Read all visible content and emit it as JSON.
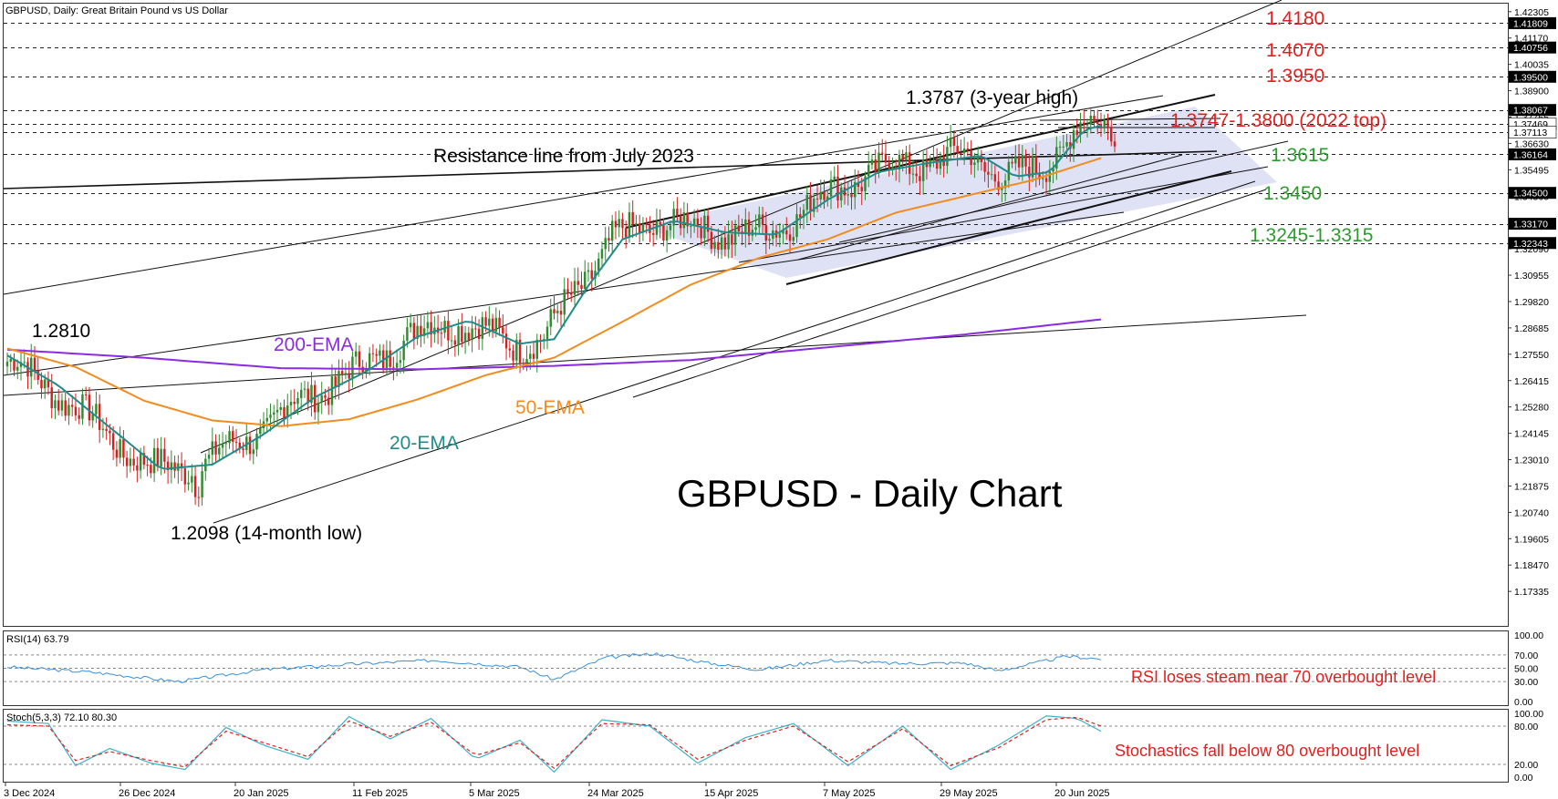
{
  "header": {
    "title": "GBPUSD, Daily:  Great Britain Pound vs US Dollar"
  },
  "colors": {
    "bull": "#2e8b2e",
    "bear": "#d42020",
    "ema20": "#238a8a",
    "ema50": "#f28c1e",
    "ema200": "#8a2be2",
    "channel_fill": "#d9dcf2",
    "red_label": "#e0201e",
    "green_label": "#2e9a2e",
    "rsi_line": "#3b8fd6",
    "stoch_k": "#3bb0c8",
    "stoch_d": "#e0201e"
  },
  "chart_data": [
    {
      "type": "candlestick",
      "title": "GBPUSD - Daily Chart",
      "ylim": [
        1.1585,
        1.4265
      ],
      "price_ticks": [
        "1.42305",
        "1.41170",
        "1.40035",
        "1.38900",
        "1.37765",
        "1.36630",
        "1.35495",
        "1.34360",
        "1.33225",
        "1.32090",
        "1.30955",
        "1.29820",
        "1.28685",
        "1.27550",
        "1.26415",
        "1.25280",
        "1.24145",
        "1.23010",
        "1.21875",
        "1.20740",
        "1.19605",
        "1.18470",
        "1.17335"
      ],
      "price_tags": [
        {
          "label": "1.41809",
          "value": 1.4181,
          "dark": true
        },
        {
          "label": "1.40756",
          "value": 1.4076,
          "dark": true
        },
        {
          "label": "1.39500",
          "value": 1.395,
          "dark": true
        },
        {
          "label": "1.38067",
          "value": 1.3807,
          "dark": true
        },
        {
          "label": "1.37469",
          "value": 1.3747,
          "dark": false
        },
        {
          "label": "1.37113",
          "value": 1.3711,
          "dark": false
        },
        {
          "label": "1.36164",
          "value": 1.3616,
          "dark": true
        },
        {
          "label": "1.34500",
          "value": 1.345,
          "dark": true
        },
        {
          "label": "1.33170",
          "value": 1.3317,
          "dark": true
        },
        {
          "label": "1.32343",
          "value": 1.3234,
          "dark": true
        }
      ],
      "dates": [
        "3 Dec 2024",
        "26 Dec 2024",
        "20 Jan 2025",
        "11 Feb 2025",
        "5 Mar 2025",
        "24 Mar 2025",
        "15 Apr 2025",
        "7 May 2025",
        "29 May 2025",
        "20 Jun 2025"
      ],
      "series": [
        {
          "name": "200-EMA",
          "values": [
            [
              0,
              1.2775
            ],
            [
              40,
              1.274
            ],
            [
              80,
              1.2695
            ],
            [
              120,
              1.269
            ],
            [
              160,
              1.2705
            ],
            [
              200,
              1.273
            ],
            [
              240,
              1.2785
            ],
            [
              280,
              1.284
            ],
            [
              320,
              1.2905
            ]
          ]
        },
        {
          "name": "50-EMA",
          "values": [
            [
              0,
              1.278
            ],
            [
              20,
              1.27
            ],
            [
              40,
              1.2555
            ],
            [
              60,
              1.247
            ],
            [
              80,
              1.2445
            ],
            [
              100,
              1.2475
            ],
            [
              120,
              1.256
            ],
            [
              140,
              1.2665
            ],
            [
              160,
              1.274
            ],
            [
              180,
              1.2895
            ],
            [
              200,
              1.3055
            ],
            [
              220,
              1.317
            ],
            [
              240,
              1.325
            ],
            [
              260,
              1.3365
            ],
            [
              280,
              1.3435
            ],
            [
              300,
              1.3505
            ],
            [
              320,
              1.36
            ]
          ]
        },
        {
          "name": "20-EMA",
          "values": [
            [
              0,
              1.275
            ],
            [
              15,
              1.262
            ],
            [
              30,
              1.244
            ],
            [
              45,
              1.226
            ],
            [
              60,
              1.228
            ],
            [
              75,
              1.241
            ],
            [
              90,
              1.257
            ],
            [
              105,
              1.268
            ],
            [
              120,
              1.283
            ],
            [
              135,
              1.29
            ],
            [
              150,
              1.28
            ],
            [
              160,
              1.282
            ],
            [
              170,
              1.305
            ],
            [
              180,
              1.325
            ],
            [
              195,
              1.333
            ],
            [
              210,
              1.328
            ],
            [
              225,
              1.327
            ],
            [
              240,
              1.342
            ],
            [
              255,
              1.354
            ],
            [
              270,
              1.358
            ],
            [
              285,
              1.361
            ],
            [
              295,
              1.352
            ],
            [
              305,
              1.354
            ],
            [
              315,
              1.372
            ],
            [
              320,
              1.374
            ]
          ]
        }
      ],
      "annotations": [
        {
          "text": "1.4180",
          "color": "red"
        },
        {
          "text": "1.4070",
          "color": "red"
        },
        {
          "text": "1.3950",
          "color": "red"
        },
        {
          "text": "1.3747-1.3800  (2022 top)",
          "color": "red"
        },
        {
          "text": "1.3787 (3-year high)",
          "color": "black"
        },
        {
          "text": "Resistance line from July 2023",
          "color": "black"
        },
        {
          "text": "1.3615",
          "color": "green"
        },
        {
          "text": "1.3450",
          "color": "green"
        },
        {
          "text": "1.3245-1.3315",
          "color": "green"
        },
        {
          "text": "1.2810",
          "color": "black"
        },
        {
          "text": "200-EMA",
          "color": "purple"
        },
        {
          "text": "50-EMA",
          "color": "orange"
        },
        {
          "text": "20-EMA",
          "color": "teal"
        },
        {
          "text": "1.2098 (14-month low)",
          "color": "black"
        }
      ]
    },
    {
      "type": "line",
      "label": "RSI(14) 63.79",
      "ylim": [
        0,
        100
      ],
      "ticks": [
        "100.00",
        "70.00",
        "50.00",
        "30.00",
        "0.00"
      ],
      "levels": [
        70,
        50,
        30
      ],
      "values": [
        [
          0,
          52
        ],
        [
          25,
          44
        ],
        [
          50,
          30
        ],
        [
          75,
          48
        ],
        [
          100,
          56
        ],
        [
          125,
          62
        ],
        [
          150,
          52
        ],
        [
          160,
          33
        ],
        [
          175,
          66
        ],
        [
          190,
          72
        ],
        [
          205,
          58
        ],
        [
          220,
          48
        ],
        [
          240,
          62
        ],
        [
          260,
          57
        ],
        [
          280,
          58
        ],
        [
          290,
          46
        ],
        [
          310,
          68
        ],
        [
          320,
          64
        ]
      ],
      "note": "RSI loses steam near 70 overbought level"
    },
    {
      "type": "line",
      "label": "Stoch(5,3,3) 72.10 80.30",
      "ylim": [
        0,
        100
      ],
      "ticks": [
        "100.00",
        "80.00",
        "20.00",
        "0.00"
      ],
      "levels": [
        80,
        20
      ],
      "k": [
        [
          0,
          88
        ],
        [
          12,
          84
        ],
        [
          20,
          18
        ],
        [
          30,
          45
        ],
        [
          42,
          22
        ],
        [
          52,
          12
        ],
        [
          64,
          78
        ],
        [
          75,
          50
        ],
        [
          88,
          28
        ],
        [
          100,
          95
        ],
        [
          112,
          60
        ],
        [
          124,
          92
        ],
        [
          137,
          28
        ],
        [
          150,
          58
        ],
        [
          160,
          8
        ],
        [
          174,
          90
        ],
        [
          188,
          80
        ],
        [
          202,
          22
        ],
        [
          216,
          62
        ],
        [
          230,
          84
        ],
        [
          246,
          18
        ],
        [
          262,
          80
        ],
        [
          276,
          12
        ],
        [
          290,
          50
        ],
        [
          304,
          96
        ],
        [
          313,
          92
        ],
        [
          320,
          72
        ]
      ],
      "d": [
        [
          0,
          82
        ],
        [
          12,
          80
        ],
        [
          20,
          26
        ],
        [
          30,
          40
        ],
        [
          42,
          26
        ],
        [
          52,
          16
        ],
        [
          64,
          72
        ],
        [
          75,
          54
        ],
        [
          88,
          32
        ],
        [
          100,
          88
        ],
        [
          112,
          64
        ],
        [
          124,
          86
        ],
        [
          137,
          34
        ],
        [
          150,
          54
        ],
        [
          160,
          14
        ],
        [
          174,
          84
        ],
        [
          188,
          82
        ],
        [
          202,
          28
        ],
        [
          216,
          58
        ],
        [
          230,
          80
        ],
        [
          246,
          24
        ],
        [
          262,
          76
        ],
        [
          276,
          18
        ],
        [
          290,
          46
        ],
        [
          304,
          90
        ],
        [
          313,
          94
        ],
        [
          320,
          80
        ]
      ],
      "note": "Stochastics fall below 80 overbought level"
    }
  ]
}
